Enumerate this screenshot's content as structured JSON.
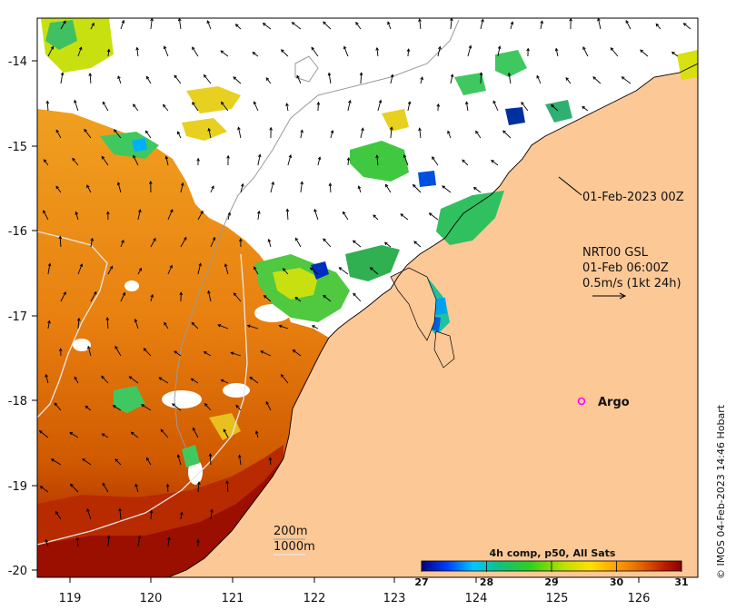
{
  "map": {
    "lon_ticks": [
      "119",
      "120",
      "121",
      "122",
      "123",
      "124",
      "125",
      "126"
    ],
    "lat_ticks": [
      "-14",
      "-15",
      "-16",
      "-17",
      "-18",
      "-19",
      "-20"
    ],
    "colors": {
      "land": "#fcc896",
      "no_data": "#ffffff",
      "bathy_200": "#9a9a9a",
      "bathy_1000": "#e8e8e8"
    }
  },
  "annotations": {
    "sst_date": "01-Feb-2023 00Z",
    "current_source": "NRT00 GSL",
    "current_date": "01-Feb 06:00Z",
    "current_scale": "0.5m/s (1kt 24h)",
    "argo_label": "Argo",
    "argo_marker_color": "#ff00ff"
  },
  "legend": {
    "contour_200": "200m",
    "contour_1000": "1000m"
  },
  "colorbar": {
    "title": "4h comp, p50, All Sats",
    "ticks": [
      "27",
      "28",
      "29",
      "30",
      "31"
    ],
    "range": [
      27,
      31
    ],
    "stops": [
      "#00007f",
      "#0040ff",
      "#00c8ff",
      "#10c080",
      "#30d020",
      "#c0e000",
      "#ffe000",
      "#ffa000",
      "#e06000",
      "#c02000",
      "#8b0000"
    ]
  },
  "credit": "© IMOS 04-Feb-2023 14:46 Hobart"
}
